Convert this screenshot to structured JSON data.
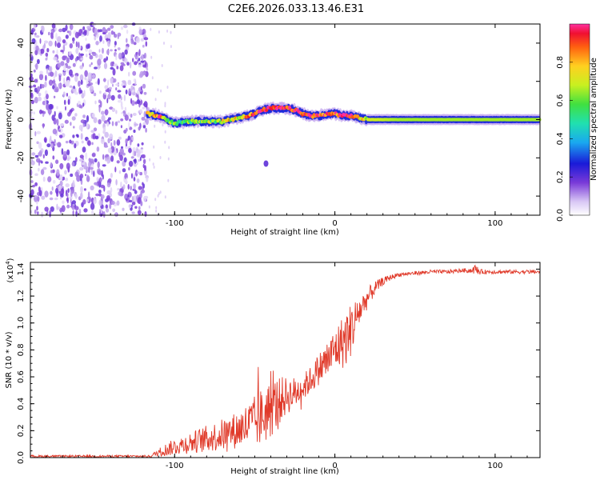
{
  "title": "C2E6.2026.033.13.46.E31",
  "chart_data": [
    {
      "type": "heatmap",
      "name": "spectrogram",
      "xlabel": "Height of straight line (km)",
      "ylabel": "Frequency (Hz)",
      "xlim": [
        -190,
        128
      ],
      "ylim": [
        -50,
        50
      ],
      "xticks": [
        -100,
        0,
        100
      ],
      "yticks": [
        -40,
        -20,
        0,
        20,
        40
      ],
      "colorbar": {
        "label": "Normalized spectral amplitude",
        "range": [
          0,
          1
        ],
        "ticks": [
          0.0,
          0.2,
          0.4,
          0.6,
          0.8
        ]
      },
      "noise_region_x": [
        -190,
        -117
      ],
      "signal_start_x": -117,
      "ridge": {
        "x": [
          -117,
          -110,
          -100,
          -90,
          -80,
          -70,
          -60,
          -50,
          -45,
          -40,
          -35,
          -30,
          -25,
          -20,
          -15,
          -10,
          -5,
          0,
          5,
          10,
          15,
          20,
          40,
          60,
          80,
          100,
          128
        ],
        "freq": [
          3,
          2,
          -2,
          -1,
          -1,
          -1,
          1,
          3,
          5,
          6,
          6,
          6,
          5,
          3,
          2,
          2,
          3,
          3,
          2,
          2,
          1,
          0,
          0,
          0,
          0,
          0,
          0
        ],
        "amplitude": [
          0.75,
          0.9,
          0.55,
          0.6,
          0.6,
          0.7,
          0.75,
          0.9,
          0.95,
          0.97,
          0.95,
          0.95,
          0.95,
          0.9,
          0.95,
          0.9,
          0.85,
          0.85,
          0.95,
          0.95,
          0.8,
          0.7,
          0.65,
          0.65,
          0.65,
          0.65,
          0.65
        ]
      },
      "outlier_blob": {
        "x": -43,
        "freq": -23
      }
    },
    {
      "type": "line",
      "name": "snr",
      "xlabel": "Height of straight line (km)",
      "ylabel": "SNR (10 * v/v)",
      "y_multiplier": "(x10",
      "y_multiplier_exp": "4",
      "y_multiplier_close": ")",
      "xlim": [
        -190,
        128
      ],
      "ylim": [
        0,
        1.45
      ],
      "xticks": [
        -100,
        0,
        100
      ],
      "yticks": [
        0.0,
        0.2,
        0.4,
        0.6,
        0.8,
        1.0,
        1.2,
        1.4
      ],
      "color": "#e03a2a",
      "series": {
        "x": [
          -190,
          -150,
          -115,
          -110,
          -105,
          -100,
          -90,
          -80,
          -70,
          -60,
          -50,
          -45,
          -40,
          -35,
          -30,
          -25,
          -20,
          -15,
          -10,
          -5,
          0,
          5,
          8,
          10,
          12,
          15,
          20,
          25,
          30,
          35,
          40,
          50,
          60,
          70,
          80,
          85,
          88,
          90,
          95,
          100,
          110,
          128
        ],
        "baseline": [
          0.01,
          0.01,
          0.01,
          0.04,
          0.06,
          0.08,
          0.11,
          0.14,
          0.17,
          0.21,
          0.26,
          0.31,
          0.36,
          0.42,
          0.46,
          0.48,
          0.52,
          0.58,
          0.66,
          0.72,
          0.8,
          0.86,
          0.9,
          0.95,
          1.0,
          1.08,
          1.18,
          1.26,
          1.31,
          1.34,
          1.36,
          1.37,
          1.38,
          1.38,
          1.39,
          1.39,
          1.4,
          1.38,
          1.38,
          1.38,
          1.38,
          1.38
        ],
        "noise_amp": [
          0.008,
          0.008,
          0.008,
          0.03,
          0.05,
          0.06,
          0.08,
          0.1,
          0.12,
          0.14,
          0.2,
          0.22,
          0.22,
          0.18,
          0.14,
          0.12,
          0.1,
          0.1,
          0.12,
          0.15,
          0.16,
          0.2,
          0.22,
          0.2,
          0.18,
          0.12,
          0.08,
          0.05,
          0.03,
          0.02,
          0.015,
          0.015,
          0.015,
          0.015,
          0.015,
          0.02,
          0.04,
          0.02,
          0.015,
          0.015,
          0.015,
          0.015
        ]
      }
    }
  ]
}
